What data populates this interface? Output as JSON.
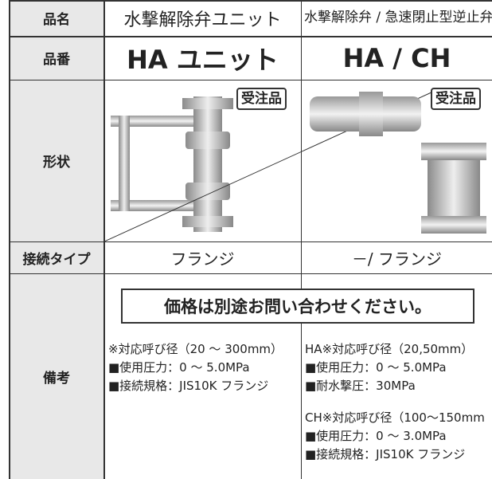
{
  "table": {
    "rows": [
      {
        "label": "品名",
        "cells": [
          "水撃解除弁ユニット",
          "水撃解除弁 / 急速閉止型逆止弁"
        ]
      },
      {
        "label": "品番",
        "cells": [
          "HA ユニット",
          "HA / CH"
        ]
      },
      {
        "label": "形状",
        "badges": [
          "受注品",
          "受注品"
        ]
      },
      {
        "label": "接続タイプ",
        "cells": [
          "フランジ",
          "－/ フランジ"
        ]
      },
      {
        "label": "備考",
        "notice": "価格は別途お問い合わせください。",
        "left": [
          "※対応呼び径（20 ～ 300mm）",
          "■使用圧力：0 ～ 5.0MPa",
          "■接続規格：JIS10K フランジ"
        ],
        "right_ha": [
          "HA※対応呼び径（20,50mm）",
          "■使用圧力：0 ～ 5.0MPa",
          "■耐水撃圧：30MPa"
        ],
        "right_ch": [
          "CH※対応呼び径（100～150mm",
          "■使用圧力：0 ～ 3.0MPa",
          "■接続規格：JIS10K フランジ"
        ]
      }
    ]
  }
}
